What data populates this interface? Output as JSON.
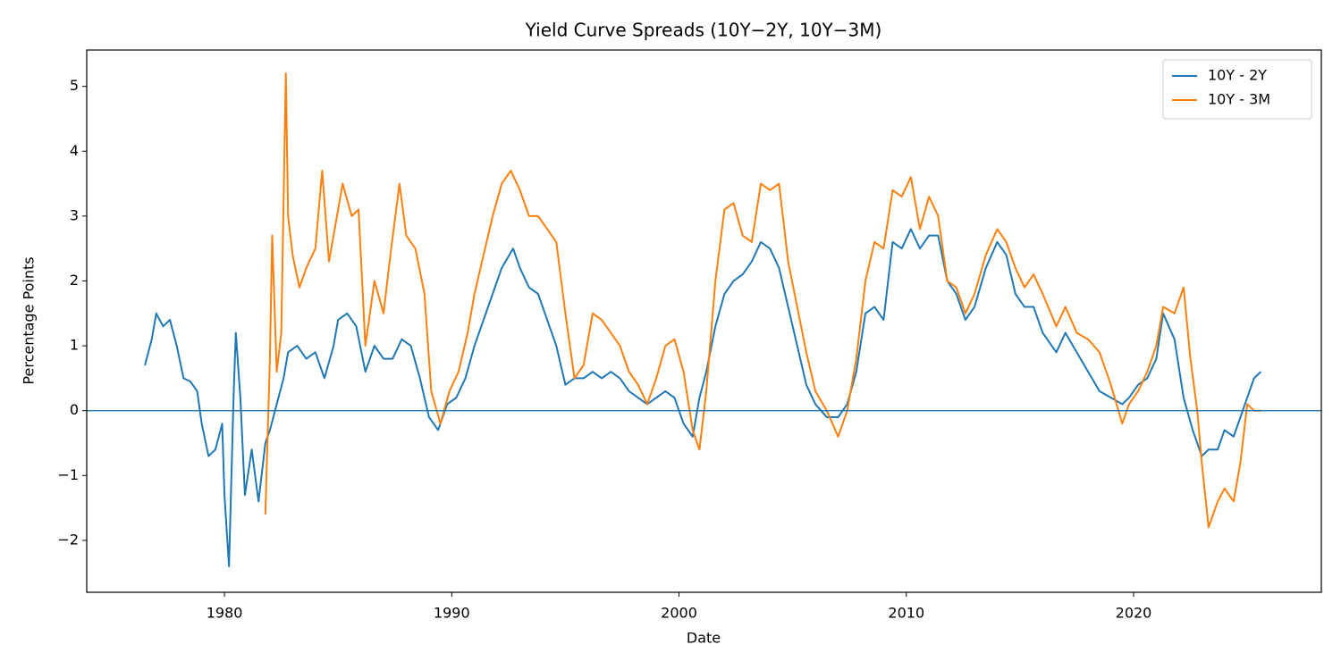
{
  "chart_data": {
    "type": "line",
    "title": "Yield Curve Spreads (10Y−2Y, 10Y−3M)",
    "x_label": "Date",
    "y_label": "Percentage Points",
    "xlim": [
      1973.94,
      2028.26
    ],
    "xticks": [
      1980,
      1990,
      2000,
      2010,
      2020
    ],
    "ylim": [
      -2.8,
      5.56
    ],
    "yticks": [
      {
        "value": -2,
        "label": "−2"
      },
      {
        "value": -1,
        "label": "−1"
      },
      0,
      1,
      2,
      3,
      4,
      5
    ],
    "reference_line": 0,
    "reference_color": "#1f77b4",
    "legend": "upper right",
    "grid": false,
    "series": [
      {
        "name": "10Y - 2Y",
        "color": "#1f77b4",
        "x": [
          1976.5,
          1976.8,
          1977.0,
          1977.3,
          1977.6,
          1977.9,
          1978.2,
          1978.5,
          1978.8,
          1979.0,
          1979.3,
          1979.6,
          1979.9,
          1980.0,
          1980.2,
          1980.4,
          1980.5,
          1980.7,
          1980.9,
          1981.2,
          1981.5,
          1981.8,
          1982.0,
          1982.3,
          1982.6,
          1982.8,
          1983.2,
          1983.6,
          1984.0,
          1984.4,
          1984.8,
          1985.0,
          1985.4,
          1985.8,
          1986.2,
          1986.6,
          1987.0,
          1987.4,
          1987.8,
          1988.2,
          1988.6,
          1989.0,
          1989.4,
          1989.8,
          1990.2,
          1990.6,
          1991.0,
          1991.4,
          1991.8,
          1992.2,
          1992.7,
          1993.0,
          1993.4,
          1993.8,
          1994.2,
          1994.6,
          1995.0,
          1995.4,
          1995.8,
          1996.2,
          1996.6,
          1997.0,
          1997.4,
          1997.8,
          1998.2,
          1998.6,
          1999.0,
          1999.4,
          1999.8,
          2000.2,
          2000.6,
          2000.9,
          2001.2,
          2001.6,
          2002.0,
          2002.4,
          2002.8,
          2003.2,
          2003.6,
          2004.0,
          2004.4,
          2004.8,
          2005.2,
          2005.6,
          2006.0,
          2006.5,
          2007.0,
          2007.4,
          2007.8,
          2008.2,
          2008.6,
          2009.0,
          2009.4,
          2009.8,
          2010.2,
          2010.6,
          2011.0,
          2011.4,
          2011.8,
          2012.2,
          2012.6,
          2013.0,
          2013.5,
          2014.0,
          2014.4,
          2014.8,
          2015.2,
          2015.6,
          2016.0,
          2016.6,
          2017.0,
          2017.5,
          2018.0,
          2018.5,
          2019.0,
          2019.5,
          2019.8,
          2020.2,
          2020.6,
          2021.0,
          2021.3,
          2021.8,
          2022.2,
          2022.6,
          2023.0,
          2023.3,
          2023.7,
          2024.0,
          2024.4,
          2024.7,
          2025.0,
          2025.3,
          2025.6
        ],
        "values": [
          0.7,
          1.1,
          1.5,
          1.3,
          1.4,
          1.0,
          0.5,
          0.45,
          0.3,
          -0.2,
          -0.7,
          -0.6,
          -0.2,
          -1.3,
          -2.4,
          0.2,
          1.2,
          0.2,
          -1.3,
          -0.6,
          -1.4,
          -0.5,
          -0.3,
          0.1,
          0.5,
          0.9,
          1.0,
          0.8,
          0.9,
          0.5,
          1.0,
          1.4,
          1.5,
          1.3,
          0.6,
          1.0,
          0.8,
          0.8,
          1.1,
          1.0,
          0.5,
          -0.1,
          -0.3,
          0.1,
          0.2,
          0.5,
          1.0,
          1.4,
          1.8,
          2.2,
          2.5,
          2.2,
          1.9,
          1.8,
          1.4,
          1.0,
          0.4,
          0.5,
          0.5,
          0.6,
          0.5,
          0.6,
          0.5,
          0.3,
          0.2,
          0.1,
          0.2,
          0.3,
          0.2,
          -0.2,
          -0.4,
          0.2,
          0.6,
          1.3,
          1.8,
          2.0,
          2.1,
          2.3,
          2.6,
          2.5,
          2.2,
          1.6,
          1.0,
          0.4,
          0.1,
          -0.1,
          -0.1,
          0.1,
          0.6,
          1.5,
          1.6,
          1.4,
          2.6,
          2.5,
          2.8,
          2.5,
          2.7,
          2.7,
          2.0,
          1.8,
          1.4,
          1.6,
          2.2,
          2.6,
          2.4,
          1.8,
          1.6,
          1.6,
          1.2,
          0.9,
          1.2,
          0.9,
          0.6,
          0.3,
          0.2,
          0.1,
          0.2,
          0.4,
          0.5,
          0.8,
          1.5,
          1.1,
          0.2,
          -0.3,
          -0.7,
          -0.6,
          -0.6,
          -0.3,
          -0.4,
          -0.1,
          0.2,
          0.5,
          0.6
        ]
      },
      {
        "name": "10Y - 3M",
        "color": "#ff7f0e",
        "x": [
          1981.8,
          1982.0,
          1982.1,
          1982.3,
          1982.5,
          1982.7,
          1982.8,
          1983.0,
          1983.3,
          1983.6,
          1984.0,
          1984.3,
          1984.6,
          1984.9,
          1985.2,
          1985.6,
          1985.9,
          1986.2,
          1986.6,
          1987.0,
          1987.3,
          1987.7,
          1988.0,
          1988.4,
          1988.8,
          1989.1,
          1989.5,
          1989.9,
          1990.3,
          1990.7,
          1991.0,
          1991.4,
          1991.8,
          1992.2,
          1992.6,
          1993.0,
          1993.4,
          1993.8,
          1994.2,
          1994.6,
          1995.0,
          1995.4,
          1995.8,
          1996.2,
          1996.6,
          1997.0,
          1997.4,
          1997.8,
          1998.2,
          1998.6,
          1999.0,
          1999.4,
          1999.8,
          2000.2,
          2000.6,
          2000.9,
          2001.2,
          2001.6,
          2002.0,
          2002.4,
          2002.8,
          2003.2,
          2003.6,
          2004.0,
          2004.4,
          2004.8,
          2005.2,
          2005.6,
          2006.0,
          2006.5,
          2007.0,
          2007.4,
          2007.8,
          2008.2,
          2008.6,
          2009.0,
          2009.4,
          2009.8,
          2010.2,
          2010.6,
          2011.0,
          2011.4,
          2011.8,
          2012.2,
          2012.6,
          2013.0,
          2013.5,
          2014.0,
          2014.4,
          2014.8,
          2015.2,
          2015.6,
          2016.0,
          2016.6,
          2017.0,
          2017.5,
          2018.0,
          2018.5,
          2019.0,
          2019.5,
          2019.8,
          2020.2,
          2020.6,
          2021.0,
          2021.3,
          2021.8,
          2022.2,
          2022.5,
          2022.8,
          2023.0,
          2023.3,
          2023.7,
          2024.0,
          2024.4,
          2024.7,
          2025.0,
          2025.3,
          2025.6
        ],
        "values": [
          -1.6,
          0.8,
          2.7,
          0.6,
          1.2,
          5.2,
          3.0,
          2.4,
          1.9,
          2.2,
          2.5,
          3.7,
          2.3,
          2.9,
          3.5,
          3.0,
          3.1,
          1.0,
          2.0,
          1.5,
          2.4,
          3.5,
          2.7,
          2.5,
          1.8,
          0.3,
          -0.2,
          0.3,
          0.6,
          1.2,
          1.8,
          2.4,
          3.0,
          3.5,
          3.7,
          3.4,
          3.0,
          3.0,
          2.8,
          2.6,
          1.5,
          0.5,
          0.7,
          1.5,
          1.4,
          1.2,
          1.0,
          0.6,
          0.4,
          0.1,
          0.5,
          1.0,
          1.1,
          0.6,
          -0.3,
          -0.6,
          0.3,
          2.0,
          3.1,
          3.2,
          2.7,
          2.6,
          3.5,
          3.4,
          3.5,
          2.3,
          1.6,
          0.9,
          0.3,
          0.0,
          -0.4,
          0.0,
          0.8,
          2.0,
          2.6,
          2.5,
          3.4,
          3.3,
          3.6,
          2.8,
          3.3,
          3.0,
          2.0,
          1.9,
          1.5,
          1.8,
          2.4,
          2.8,
          2.6,
          2.2,
          1.9,
          2.1,
          1.8,
          1.3,
          1.6,
          1.2,
          1.1,
          0.9,
          0.4,
          -0.2,
          0.1,
          0.3,
          0.6,
          1.0,
          1.6,
          1.5,
          1.9,
          0.8,
          0.0,
          -0.8,
          -1.8,
          -1.4,
          -1.2,
          -1.4,
          -0.8,
          0.1,
          0.0,
          0.0
        ]
      }
    ]
  }
}
